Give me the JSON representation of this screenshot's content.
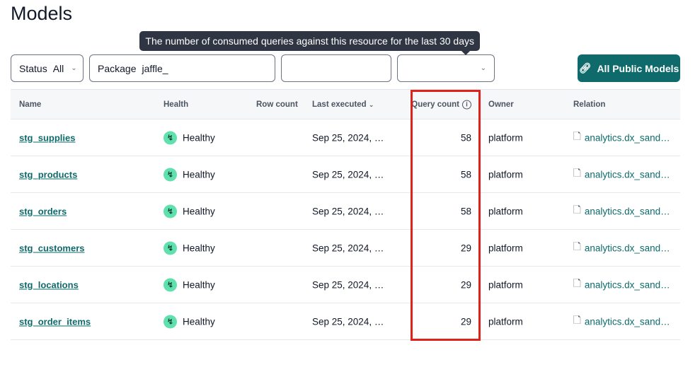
{
  "page": {
    "title": "Models"
  },
  "filters": [
    {
      "label": "Status",
      "value": "All"
    },
    {
      "label": "Package",
      "value": "jaffle_"
    },
    {
      "label": "",
      "value": ""
    },
    {
      "label": "",
      "value": ""
    }
  ],
  "actions": {
    "all_public_models": "All Public Models",
    "icon": "link-icon"
  },
  "tooltip": "The number of consumed queries against this resource for the last 30 days",
  "table": {
    "columns": [
      "Name",
      "Health",
      "Row count",
      "Last executed",
      "Query count",
      "Owner",
      "Relation"
    ],
    "rows": [
      {
        "name": "stg_supplies",
        "health": "Healthy",
        "row_count": "",
        "last_executed": "Sep 25, 2024, …",
        "query_count": "58",
        "owner": "platform",
        "relation": "analytics.dx_sand…"
      },
      {
        "name": "stg_products",
        "health": "Healthy",
        "row_count": "",
        "last_executed": "Sep 25, 2024, …",
        "query_count": "58",
        "owner": "platform",
        "relation": "analytics.dx_sand…"
      },
      {
        "name": "stg_orders",
        "health": "Healthy",
        "row_count": "",
        "last_executed": "Sep 25, 2024, …",
        "query_count": "58",
        "owner": "platform",
        "relation": "analytics.dx_sand…"
      },
      {
        "name": "stg_customers",
        "health": "Healthy",
        "row_count": "",
        "last_executed": "Sep 25, 2024, …",
        "query_count": "29",
        "owner": "platform",
        "relation": "analytics.dx_sand…"
      },
      {
        "name": "stg_locations",
        "health": "Healthy",
        "row_count": "",
        "last_executed": "Sep 25, 2024, …",
        "query_count": "29",
        "owner": "platform",
        "relation": "analytics.dx_sand…"
      },
      {
        "name": "stg_order_items",
        "health": "Healthy",
        "row_count": "",
        "last_executed": "Sep 25, 2024, …",
        "query_count": "29",
        "owner": "platform",
        "relation": "analytics.dx_sand…"
      }
    ]
  },
  "colors": {
    "accent": "#0f6b6b",
    "healthy": "#5fe0ad",
    "highlight": "#e0221b",
    "tooltip_bg": "#2f3542"
  }
}
